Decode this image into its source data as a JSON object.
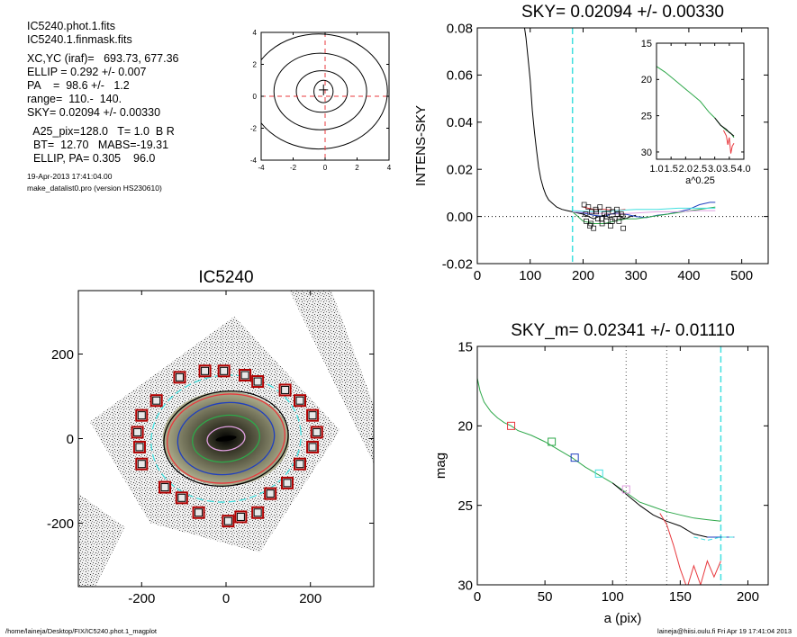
{
  "info": {
    "lines1": [
      "IC5240.phot.1.fits",
      "IC5240.1.finmask.fits"
    ],
    "lines2": [
      "XC,YC (iraf)=   693.73, 677.36",
      "ELLIP = 0.292 +/- 0.007",
      "PA    =  98.6 +/-   1.2",
      "range=  110.-  140.",
      "SKY= 0.02094 +/- 0.00330"
    ],
    "lines3": [
      "  A25_pix=128.0   T= 1.0  B R",
      "  BT=  12.70   MABS=-19.31",
      "  ELLIP, PA= 0.305    96.0"
    ],
    "date": "19-Apr-2013 17:41:04.00",
    "program": "make_datalist0.pro (version HS230610)"
  },
  "footer": {
    "left": "/home/laineja/Desktop/FIX/IC5240.phot.1_magplot",
    "right": "laineja@hiisi.oulu.fi  Fri Apr 19 17:41:04 2013"
  },
  "chart_data": [
    {
      "id": "contour",
      "type": "contour",
      "title": "",
      "xlim": [
        -4,
        4
      ],
      "ylim": [
        -4,
        4
      ],
      "xticks": [
        -4,
        -2,
        0,
        2,
        4
      ],
      "yticks": [
        -4,
        -2,
        0,
        2,
        4
      ],
      "tick_labels": [
        "-4",
        "-2",
        "0",
        "2",
        "4"
      ],
      "contours": [
        {
          "cx": -0.1,
          "cy": 0.3,
          "rx": 0.6,
          "ry": 0.7
        },
        {
          "cx": -0.2,
          "cy": 0.3,
          "rx": 1.6,
          "ry": 1.3
        },
        {
          "cx": -0.3,
          "cy": 0.3,
          "rx": 2.9,
          "ry": 2.4
        },
        {
          "cx": -0.4,
          "cy": 0.3,
          "rx": 4.3,
          "ry": 3.6
        }
      ],
      "crosshair": [
        0,
        0
      ],
      "colors": {
        "contour": "#000000",
        "crosshair": "#e8383d"
      }
    },
    {
      "id": "sky",
      "type": "line",
      "title": "SKY= 0.02094 +/- 0.00330",
      "xlabel": "",
      "ylabel": "INTENS-SKY",
      "xlim": [
        0,
        550
      ],
      "ylim": [
        -0.02,
        0.08
      ],
      "xticks": [
        0,
        100,
        200,
        300,
        400,
        500
      ],
      "xtick_labels": [
        "0",
        "100",
        "200",
        "300",
        "400",
        "500"
      ],
      "yticks": [
        -0.02,
        0.0,
        0.02,
        0.04,
        0.06,
        0.08
      ],
      "ytick_labels": [
        "-0.02",
        "0.00",
        "0.02",
        "0.04",
        "0.06",
        "0.08"
      ],
      "zero_line": 0,
      "vline": 180,
      "series": [
        {
          "color": "#000000",
          "x": [
            88,
            92,
            96,
            100,
            104,
            108,
            112,
            116,
            120,
            125,
            130,
            135,
            140,
            150,
            160,
            170,
            180,
            190,
            200,
            210,
            220,
            230,
            240,
            250,
            260,
            270,
            280,
            290,
            300
          ],
          "y": [
            0.082,
            0.076,
            0.067,
            0.058,
            0.045,
            0.036,
            0.028,
            0.021,
            0.016,
            0.012,
            0.009,
            0.007,
            0.006,
            0.004,
            0.003,
            0.0025,
            0.002,
            0.0015,
            0.001,
            0.0,
            -0.001,
            0.0,
            0.0005,
            -0.0005,
            0.0,
            0.0,
            -0.001,
            0.0,
            0.0005
          ]
        },
        {
          "color": "#1f3fbf",
          "x": [
            180,
            200,
            220,
            240,
            260,
            280,
            300,
            320,
            340,
            360,
            380,
            400,
            420,
            440,
            450
          ],
          "y": [
            0.002,
            0.0015,
            0.0005,
            0.0,
            0.0015,
            0.001,
            0.0,
            -0.0005,
            0.0005,
            0.001,
            0.002,
            0.003,
            0.005,
            0.006,
            0.006
          ]
        },
        {
          "color": "#2ea84a",
          "x": [
            180,
            200,
            220,
            240,
            260,
            280,
            300,
            330,
            360,
            390,
            420,
            450
          ],
          "y": [
            0.002,
            -0.002,
            -0.003,
            -0.003,
            -0.002,
            -0.001,
            -0.001,
            0.0,
            0.001,
            0.002,
            0.003,
            0.004
          ]
        },
        {
          "color": "#e8383d",
          "x": [
            200,
            220,
            240,
            260,
            280
          ],
          "y": [
            0.004,
            0.003,
            0.003,
            0.0025,
            0.003
          ]
        },
        {
          "color": "#40e0e0",
          "x": [
            180,
            220,
            260,
            300,
            340,
            380,
            420,
            450
          ],
          "y": [
            0.0025,
            0.002,
            0.0025,
            0.003,
            0.003,
            0.0035,
            0.0035,
            0.0035
          ]
        },
        {
          "color": "#e0a0e0",
          "x": [
            180,
            220,
            260,
            300,
            340,
            380,
            420,
            450
          ],
          "y": [
            0.002,
            0.0015,
            0.001,
            0.0015,
            0.002,
            0.002,
            0.0025,
            0.0025
          ]
        }
      ],
      "squares": {
        "x": [
          202,
          206,
          210,
          213,
          216,
          220,
          224,
          228,
          232,
          236,
          240,
          244,
          248,
          252,
          256,
          260,
          264,
          268,
          272,
          276,
          205,
          215,
          225,
          235,
          245,
          255,
          265,
          275
        ],
        "y": [
          0.005,
          -0.002,
          0.004,
          -0.004,
          0.002,
          -0.005,
          0.003,
          -0.001,
          0.004,
          -0.003,
          0.001,
          -0.002,
          0.003,
          -0.004,
          0.002,
          -0.001,
          0.003,
          -0.002,
          0.001,
          -0.005,
          0.001,
          -0.003,
          0.002,
          -0.001,
          0.0,
          -0.002,
          0.001,
          0.0
        ]
      },
      "inset": {
        "xlabel": "a^0.25",
        "xlim": [
          1.0,
          4.0
        ],
        "ylim": [
          15,
          31
        ],
        "xticks": [
          1.0,
          1.5,
          2.0,
          2.5,
          3.0,
          3.5,
          4.0
        ],
        "xtick_labels": [
          "1.0",
          "1.5",
          "2.0",
          "2.5",
          "3.0",
          "3.5",
          "4.0"
        ],
        "yticks": [
          15,
          20,
          25,
          30
        ],
        "ytick_labels": [
          "15",
          "20",
          "25",
          "30"
        ],
        "series": [
          {
            "color": "#2ea84a",
            "x": [
              1.0,
              1.3,
              1.6,
              1.9,
              2.2,
              2.5,
              2.8,
              3.0,
              3.2,
              3.4,
              3.55,
              3.66
            ],
            "y": [
              18.2,
              19.0,
              20.0,
              21.0,
              22.0,
              23.0,
              24.5,
              25.3,
              26.3,
              27.0,
              27.4,
              28.0
            ]
          },
          {
            "color": "#000000",
            "x": [
              3.0,
              3.2,
              3.4,
              3.5,
              3.6,
              3.66
            ],
            "y": [
              25.3,
              26.3,
              26.9,
              27.3,
              27.6,
              27.8
            ]
          },
          {
            "color": "#e8383d",
            "x": [
              3.3,
              3.4,
              3.45,
              3.5,
              3.55,
              3.6,
              3.66
            ],
            "y": [
              27.0,
              27.8,
              29.0,
              28.0,
              30.2,
              29.2,
              28.8
            ]
          }
        ]
      }
    },
    {
      "id": "image",
      "type": "image",
      "title": "IC5240",
      "xlim": [
        -350,
        350
      ],
      "ylim": [
        -350,
        350
      ],
      "xticks": [
        -200,
        0,
        200
      ],
      "yticks": [
        -200,
        0,
        200
      ],
      "xtick_labels": [
        "-200",
        "0",
        "200"
      ],
      "ytick_labels": [
        "-200",
        "0",
        "200"
      ],
      "ellipses": [
        {
          "color": "#40e0e0",
          "rx": 178,
          "ry": 150,
          "dashed": true
        },
        {
          "color": "#000000",
          "rx": 148,
          "ry": 112,
          "dashed": false
        },
        {
          "color": "#e8383d",
          "rx": 140,
          "ry": 105,
          "dashed": false
        },
        {
          "color": "#1f3fbf",
          "rx": 115,
          "ry": 85,
          "dashed": false
        },
        {
          "color": "#2ea84a",
          "rx": 80,
          "ry": 55,
          "dashed": false
        },
        {
          "color": "#e0a0e0",
          "rx": 45,
          "ry": 28,
          "dashed": false
        }
      ],
      "markers": {
        "x": [
          -110,
          -50,
          -5,
          45,
          75,
          140,
          175,
          205,
          215,
          205,
          175,
          145,
          105,
          75,
          35,
          5,
          -65,
          -105,
          -145,
          -200,
          -205,
          -210,
          -200,
          -165
        ],
        "y": [
          145,
          160,
          160,
          150,
          135,
          115,
          90,
          55,
          15,
          -20,
          -60,
          -105,
          -130,
          -175,
          -185,
          -195,
          -175,
          -140,
          -115,
          -60,
          -20,
          15,
          55,
          90
        ]
      }
    },
    {
      "id": "profile",
      "type": "line",
      "title": "SKY_m=  0.02341 +/- 0.01110",
      "xlabel": "a (pix)",
      "ylabel": "mag",
      "xlim": [
        0,
        215
      ],
      "ylim": [
        30,
        15
      ],
      "xticks": [
        0,
        50,
        100,
        150,
        200
      ],
      "xtick_labels": [
        "0",
        "50",
        "100",
        "150",
        "200"
      ],
      "yticks": [
        15,
        20,
        25,
        30
      ],
      "ytick_labels": [
        "15",
        "20",
        "25",
        "30"
      ],
      "vlines": [
        {
          "x": 110,
          "color": "#555555"
        },
        {
          "x": 140,
          "color": "#555555"
        },
        {
          "x": 180,
          "color": "#40e0e0"
        }
      ],
      "series": [
        {
          "color": "#2ea84a",
          "x": [
            0,
            2,
            5,
            10,
            15,
            20,
            25,
            30,
            40,
            50,
            60,
            70,
            80,
            90,
            100,
            110,
            120,
            130,
            140,
            150,
            160,
            170,
            180
          ],
          "y": [
            17.0,
            17.8,
            18.5,
            19.1,
            19.5,
            19.8,
            20.0,
            20.3,
            20.6,
            21.0,
            21.5,
            22.0,
            22.6,
            23.1,
            23.6,
            24.2,
            24.8,
            25.1,
            25.4,
            25.6,
            25.8,
            25.9,
            26.0
          ]
        },
        {
          "color": "#000000",
          "x": [
            100,
            110,
            120,
            130,
            140,
            150,
            160,
            170,
            180
          ],
          "y": [
            23.6,
            24.3,
            25.0,
            25.6,
            26.0,
            26.3,
            26.8,
            27.0,
            27.0
          ]
        },
        {
          "color": "#e8383d",
          "x": [
            135,
            140,
            145,
            150,
            155,
            160,
            165,
            170,
            175,
            180
          ],
          "y": [
            25.5,
            26.2,
            27.5,
            29.0,
            30.2,
            28.8,
            30.0,
            28.5,
            29.5,
            28.5
          ]
        },
        {
          "color": "#1f3fbf",
          "x": [
            170,
            175,
            180,
            185,
            190
          ],
          "y": [
            27.0,
            27.0,
            27.0,
            27.0,
            27.0
          ]
        },
        {
          "color": "#40e0e0",
          "x": [
            160,
            170,
            180,
            190
          ],
          "y": [
            27.0,
            27.2,
            27.0,
            27.0
          ]
        }
      ],
      "markers": [
        {
          "x": 25,
          "y": 20.0,
          "color": "#e8383d"
        },
        {
          "x": 55,
          "y": 21.0,
          "color": "#2ea84a"
        },
        {
          "x": 72,
          "y": 22.0,
          "color": "#1f3fbf"
        },
        {
          "x": 90,
          "y": 23.0,
          "color": "#40e0e0"
        },
        {
          "x": 110,
          "y": 24.0,
          "color": "#e0a0e0"
        }
      ]
    }
  ]
}
